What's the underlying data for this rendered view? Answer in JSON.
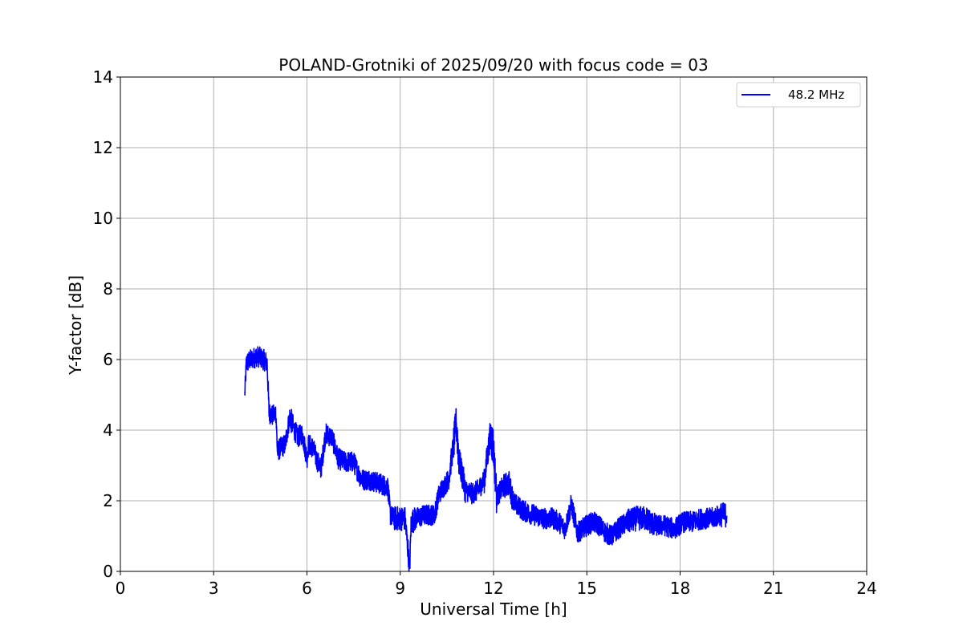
{
  "chart_data": {
    "type": "line",
    "title": "POLAND-Grotniki of 2025/09/20 with focus code = 03",
    "xlabel": "Universal Time [h]",
    "ylabel": "Y-factor [dB]",
    "xlim": [
      0,
      24
    ],
    "ylim": [
      0,
      14
    ],
    "xticks": [
      0,
      3,
      6,
      9,
      12,
      15,
      18,
      21,
      24
    ],
    "yticks": [
      0,
      2,
      4,
      6,
      8,
      10,
      12,
      14
    ],
    "xtick_labels": [
      "0",
      "3",
      "6",
      "9",
      "12",
      "15",
      "18",
      "21",
      "24"
    ],
    "ytick_labels": [
      "0",
      "2",
      "4",
      "6",
      "8",
      "10",
      "12",
      "14"
    ],
    "grid": true,
    "legend_position": "top-right",
    "series": [
      {
        "name": "48.2 MHz",
        "color": "#0000ff",
        "x": [
          4.0,
          4.05,
          4.2,
          4.4,
          4.6,
          4.72,
          4.78,
          4.9,
          5.0,
          5.05,
          5.15,
          5.3,
          5.45,
          5.55,
          5.7,
          5.85,
          6.0,
          6.05,
          6.2,
          6.3,
          6.45,
          6.6,
          6.8,
          7.0,
          7.2,
          7.5,
          7.7,
          7.8,
          8.0,
          8.3,
          8.6,
          8.68,
          8.8,
          9.0,
          9.15,
          9.25,
          9.3,
          9.35,
          9.5,
          9.8,
          10.1,
          10.25,
          10.4,
          10.55,
          10.7,
          10.8,
          10.9,
          11.1,
          11.3,
          11.5,
          11.7,
          11.9,
          12.0,
          12.1,
          12.3,
          12.5,
          12.6,
          12.7,
          13.0,
          13.3,
          13.6,
          13.9,
          14.1,
          14.3,
          14.5,
          14.7,
          15.0,
          15.2,
          15.4,
          15.6,
          15.8,
          16.0,
          16.3,
          16.6,
          16.9,
          17.2,
          17.5,
          17.8,
          18.1,
          18.4,
          18.7,
          19.0,
          19.3,
          19.5
        ],
        "y": [
          5.0,
          5.9,
          6.0,
          6.1,
          6.0,
          5.9,
          4.5,
          4.4,
          4.5,
          3.4,
          3.5,
          3.6,
          4.4,
          4.1,
          3.8,
          3.9,
          3.2,
          3.6,
          3.5,
          3.2,
          2.9,
          3.9,
          3.8,
          3.2,
          3.1,
          3.1,
          2.7,
          2.6,
          2.6,
          2.5,
          2.4,
          1.6,
          1.5,
          1.5,
          1.5,
          0.6,
          0.0,
          1.4,
          1.5,
          1.6,
          1.6,
          2.2,
          2.4,
          2.6,
          3.5,
          4.2,
          3.1,
          2.3,
          2.2,
          2.3,
          2.6,
          3.9,
          3.5,
          2.1,
          2.4,
          2.5,
          2.1,
          1.9,
          1.7,
          1.6,
          1.5,
          1.5,
          1.4,
          1.2,
          1.9,
          1.1,
          1.3,
          1.4,
          1.3,
          1.1,
          1.0,
          1.2,
          1.4,
          1.5,
          1.5,
          1.3,
          1.3,
          1.2,
          1.4,
          1.4,
          1.5,
          1.5,
          1.6,
          1.6
        ],
        "noise_amplitude": [
          0.25,
          0.3,
          0.3,
          0.3,
          0.3,
          0.3,
          0.3,
          0.3,
          0.3,
          0.3,
          0.3,
          0.3,
          0.35,
          0.3,
          0.3,
          0.3,
          0.3,
          0.3,
          0.3,
          0.3,
          0.3,
          0.3,
          0.3,
          0.3,
          0.3,
          0.3,
          0.3,
          0.3,
          0.3,
          0.3,
          0.3,
          0.3,
          0.35,
          0.35,
          0.35,
          0.3,
          0.3,
          0.35,
          0.3,
          0.3,
          0.3,
          0.3,
          0.3,
          0.35,
          0.5,
          0.6,
          0.4,
          0.3,
          0.3,
          0.3,
          0.4,
          0.6,
          0.5,
          0.3,
          0.35,
          0.35,
          0.3,
          0.3,
          0.3,
          0.3,
          0.3,
          0.3,
          0.3,
          0.3,
          0.3,
          0.3,
          0.3,
          0.3,
          0.3,
          0.3,
          0.3,
          0.3,
          0.35,
          0.35,
          0.35,
          0.3,
          0.3,
          0.3,
          0.3,
          0.3,
          0.3,
          0.3,
          0.35,
          0.35
        ]
      }
    ]
  }
}
